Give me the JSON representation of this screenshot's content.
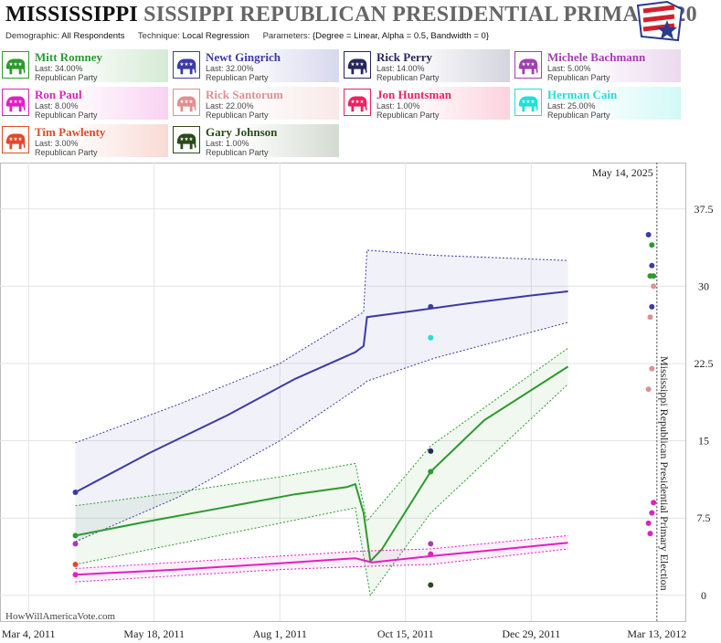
{
  "header": {
    "title_state": "MISSISSIPPI",
    "title_rest": "SISSIPPI REPUBLICAN PRESIDENTIAL PRIMARY 20",
    "params": [
      {
        "key": "Demographic:",
        "value": "All Respondents"
      },
      {
        "key": "Technique:",
        "value": "Local Regression"
      },
      {
        "key": "Parameters:",
        "value": "{Degree = Linear, Alpha = 0.5, Bandwidth = 0}"
      }
    ],
    "logo_icon": "flag-star-logo-icon"
  },
  "candidates": [
    {
      "name": "Mitt Romney",
      "last": "Last: 34.00%",
      "party": "Republican Party",
      "color": "#2e9a2e",
      "icon": "elephant-icon"
    },
    {
      "name": "Newt Gingrich",
      "last": "Last: 32.00%",
      "party": "Republican Party",
      "color": "#3b3ba8",
      "icon": "elephant-icon"
    },
    {
      "name": "Rick Perry",
      "last": "Last: 14.00%",
      "party": "Republican Party",
      "color": "#27275e",
      "icon": "elephant-icon"
    },
    {
      "name": "Michele Bachmann",
      "last": "Last: 5.00%",
      "party": "Republican Party",
      "color": "#a040b0",
      "icon": "elephant-icon"
    },
    {
      "name": "Ron Paul",
      "last": "Last: 8.00%",
      "party": "Republican Party",
      "color": "#e020c0",
      "icon": "elephant-icon"
    },
    {
      "name": "Rick Santorum",
      "last": "Last: 22.00%",
      "party": "Republican Party",
      "color": "#e09090",
      "icon": "elephant-icon"
    },
    {
      "name": "Jon Huntsman",
      "last": "Last: 1.00%",
      "party": "Republican Party",
      "color": "#f02060",
      "icon": "elephant-icon"
    },
    {
      "name": "Herman Cain",
      "last": "Last: 25.00%",
      "party": "Republican Party",
      "color": "#20e0d8",
      "icon": "elephant-icon"
    },
    {
      "name": "Tim Pawlenty",
      "last": "Last: 3.00%",
      "party": "Republican Party",
      "color": "#e04a2a",
      "icon": "elephant-icon"
    },
    {
      "name": "Gary Johnson",
      "last": "Last: 1.00%",
      "party": "Republican Party",
      "color": "#2a4a1a",
      "icon": "elephant-icon"
    }
  ],
  "chart_data": {
    "type": "line",
    "title": "MISSISSIPPI SISSIPPI REPUBLICAN PRESIDENTIAL PRIMARY 20",
    "date_label": "May 14, 2025",
    "event_label": "Mississippi Republican Presidential Primary Election",
    "event_date": "2012-03-13",
    "watermark": "HowWillAmericaVote.com",
    "x_ticks": [
      {
        "date": "2011-03-04",
        "label": "Mar 4, 2011"
      },
      {
        "date": "2011-05-18",
        "label": "May 18, 2011"
      },
      {
        "date": "2011-08-01",
        "label": "Aug 1, 2011"
      },
      {
        "date": "2011-10-15",
        "label": "Oct 15, 2011"
      },
      {
        "date": "2011-12-29",
        "label": "Dec 29, 2011"
      },
      {
        "date": "2012-03-13",
        "label": "Mar 13, 2012"
      }
    ],
    "xlim": [
      "2011-02-15",
      "2012-03-30"
    ],
    "y_ticks": [
      0,
      7.5,
      15,
      22.5,
      30,
      37.5
    ],
    "ylim": [
      -2.5,
      42
    ],
    "grid": true,
    "series": [
      {
        "name": "Newt Gingrich",
        "color": "#3b3ba8",
        "line": [
          [
            "2011-04-01",
            10
          ],
          [
            "2011-05-15",
            13.8
          ],
          [
            "2011-07-01",
            17.5
          ],
          [
            "2011-08-10",
            21
          ],
          [
            "2011-09-15",
            23.6
          ],
          [
            "2011-09-20",
            24.2
          ],
          [
            "2011-09-22",
            27
          ],
          [
            "2011-10-15",
            27.5
          ],
          [
            "2011-11-20",
            28.3
          ],
          [
            "2011-12-29",
            29.1
          ],
          [
            "2012-01-20",
            29.5
          ]
        ],
        "upper": [
          [
            "2011-04-01",
            14.8
          ],
          [
            "2011-06-01",
            18.5
          ],
          [
            "2011-08-01",
            22.5
          ],
          [
            "2011-09-20",
            27.5
          ],
          [
            "2011-09-22",
            33.5
          ],
          [
            "2011-11-01",
            33
          ],
          [
            "2012-01-20",
            32.5
          ]
        ],
        "lower": [
          [
            "2011-04-01",
            5.2
          ],
          [
            "2011-06-01",
            9.5
          ],
          [
            "2011-08-01",
            15
          ],
          [
            "2011-09-20",
            20.5
          ],
          [
            "2011-09-22",
            20.8
          ],
          [
            "2011-11-01",
            23
          ],
          [
            "2012-01-20",
            26.5
          ]
        ],
        "points": [
          [
            "2011-04-01",
            10
          ],
          [
            "2011-10-30",
            28
          ],
          [
            "2012-03-08",
            35
          ],
          [
            "2012-03-10",
            32
          ],
          [
            "2012-03-10",
            28
          ]
        ]
      },
      {
        "name": "Mitt Romney",
        "color": "#2e9a2e",
        "line": [
          [
            "2011-04-01",
            5.8
          ],
          [
            "2011-05-15",
            7.2
          ],
          [
            "2011-07-01",
            8.6
          ],
          [
            "2011-08-10",
            9.8
          ],
          [
            "2011-09-10",
            10.5
          ],
          [
            "2011-09-15",
            10.8
          ],
          [
            "2011-09-20",
            8
          ],
          [
            "2011-09-24",
            3.3
          ],
          [
            "2011-10-01",
            4.5
          ],
          [
            "2011-10-30",
            12
          ],
          [
            "2011-12-01",
            17
          ],
          [
            "2012-01-20",
            22.2
          ]
        ],
        "upper": [
          [
            "2011-04-01",
            8.7
          ],
          [
            "2011-06-01",
            10
          ],
          [
            "2011-08-01",
            11.5
          ],
          [
            "2011-09-15",
            12.8
          ],
          [
            "2011-09-22",
            7.2
          ],
          [
            "2011-10-30",
            14.5
          ],
          [
            "2012-01-20",
            24
          ]
        ],
        "lower": [
          [
            "2011-04-01",
            3
          ],
          [
            "2011-06-01",
            5
          ],
          [
            "2011-08-01",
            7
          ],
          [
            "2011-09-15",
            8.5
          ],
          [
            "2011-09-24",
            0
          ],
          [
            "2011-10-30",
            8
          ],
          [
            "2012-01-20",
            20.5
          ]
        ],
        "points": [
          [
            "2011-04-01",
            5.8
          ],
          [
            "2011-10-30",
            12
          ],
          [
            "2012-03-09",
            31
          ],
          [
            "2012-03-10",
            34
          ],
          [
            "2012-03-11",
            31
          ]
        ]
      },
      {
        "name": "Ron Paul",
        "color": "#e020c0",
        "line": [
          [
            "2011-04-01",
            2
          ],
          [
            "2011-06-01",
            2.5
          ],
          [
            "2011-08-01",
            3.1
          ],
          [
            "2011-09-15",
            3.6
          ],
          [
            "2011-09-25",
            3.2
          ],
          [
            "2011-10-30",
            3.8
          ],
          [
            "2011-12-01",
            4.3
          ],
          [
            "2012-01-20",
            5.1
          ]
        ],
        "upper": [
          [
            "2011-04-01",
            2.6
          ],
          [
            "2011-08-01",
            3.8
          ],
          [
            "2011-09-20",
            4.3
          ],
          [
            "2011-10-30",
            4.5
          ],
          [
            "2012-01-20",
            5.8
          ]
        ],
        "lower": [
          [
            "2011-04-01",
            1.3
          ],
          [
            "2011-08-01",
            2.5
          ],
          [
            "2011-09-20",
            2.8
          ],
          [
            "2011-10-30",
            3
          ],
          [
            "2012-01-20",
            4.5
          ]
        ],
        "points": [
          [
            "2011-04-01",
            2
          ],
          [
            "2011-10-30",
            4
          ],
          [
            "2012-03-09",
            6
          ],
          [
            "2012-03-10",
            8
          ],
          [
            "2012-03-11",
            9
          ],
          [
            "2012-03-08",
            7
          ]
        ]
      }
    ],
    "extra_points": [
      {
        "name": "Rick Perry",
        "color": "#27275e",
        "points": [
          [
            "2011-10-30",
            14
          ]
        ]
      },
      {
        "name": "Herman Cain",
        "color": "#20e0d8",
        "points": [
          [
            "2011-10-30",
            25
          ]
        ]
      },
      {
        "name": "Michele Bachmann",
        "color": "#a040b0",
        "points": [
          [
            "2011-04-01",
            5
          ],
          [
            "2011-10-30",
            5
          ]
        ]
      },
      {
        "name": "Tim Pawlenty",
        "color": "#e04a2a",
        "points": [
          [
            "2011-04-01",
            3
          ]
        ]
      },
      {
        "name": "Gary Johnson",
        "color": "#2a4a1a",
        "points": [
          [
            "2011-10-30",
            1
          ]
        ]
      },
      {
        "name": "Rick Santorum",
        "color": "#e09090",
        "points": [
          [
            "2012-03-08",
            20
          ],
          [
            "2012-03-10",
            22
          ],
          [
            "2012-03-09",
            27
          ],
          [
            "2012-03-11",
            30
          ]
        ]
      }
    ]
  }
}
